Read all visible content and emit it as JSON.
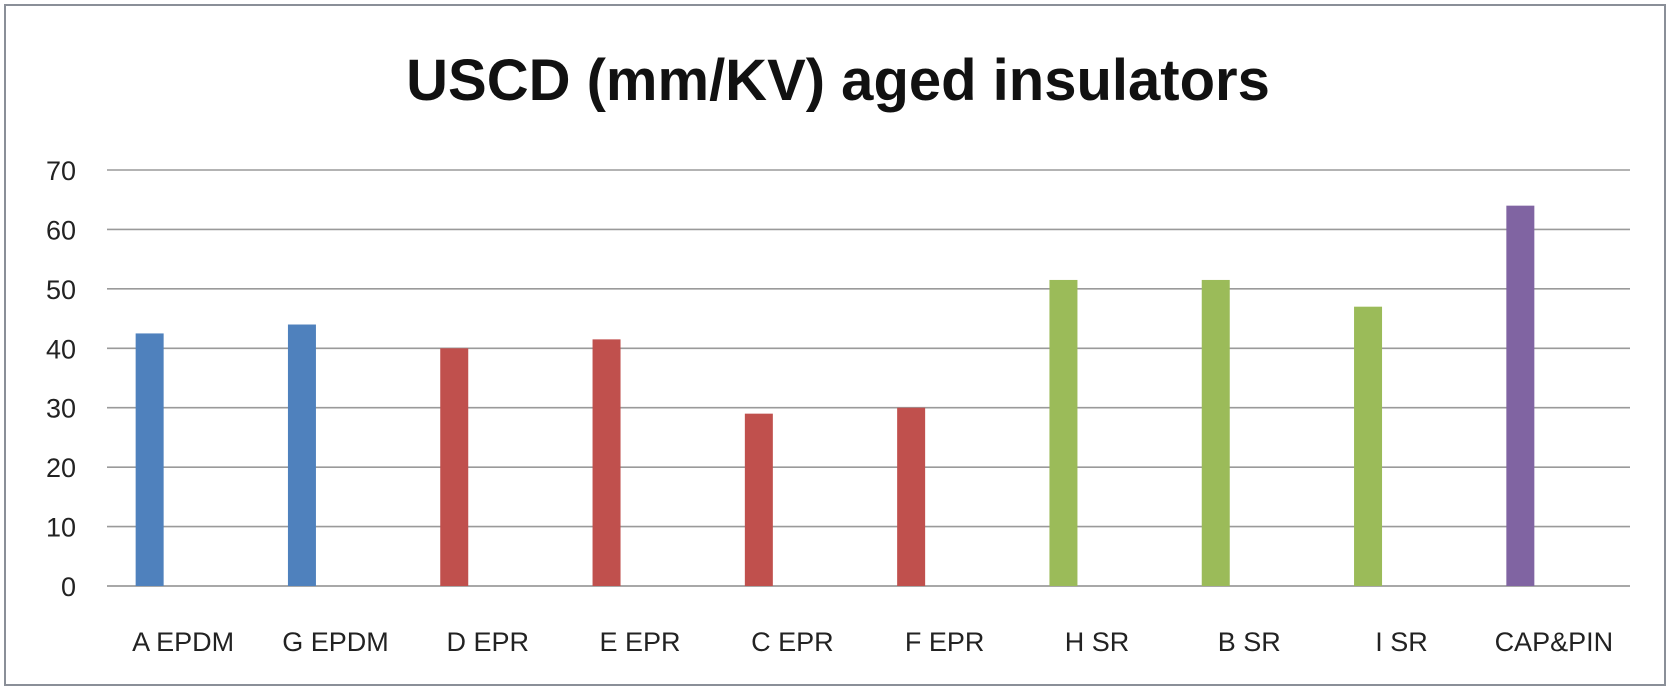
{
  "chart_data": {
    "type": "bar",
    "title": "USCD (mm/KV) aged insulators",
    "xlabel": "",
    "ylabel": "",
    "ylim": [
      0,
      70
    ],
    "yticks": [
      0,
      10,
      20,
      30,
      40,
      50,
      60,
      70
    ],
    "grid": true,
    "legend": "none",
    "categories": [
      "A EPDM",
      "G EPDM",
      "D EPR",
      "E EPR",
      "C EPR",
      "F EPR",
      "H SR",
      "B SR",
      "I SR",
      "CAP&PIN"
    ],
    "values": [
      42.5,
      44,
      40,
      41.5,
      29,
      30,
      51.5,
      51.5,
      47,
      64
    ],
    "bar_colors": [
      "#4f81bd",
      "#4f81bd",
      "#c0504d",
      "#c0504d",
      "#c0504d",
      "#c0504d",
      "#9bbb59",
      "#9bbb59",
      "#9bbb59",
      "#8064a2"
    ]
  }
}
